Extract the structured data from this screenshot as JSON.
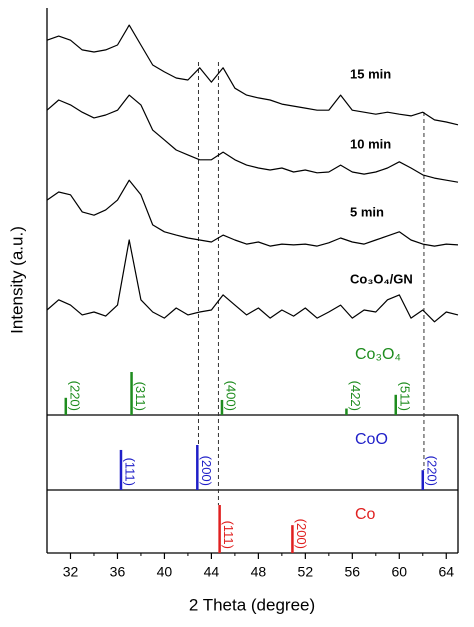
{
  "chart_data": {
    "type": "line",
    "xlabel": "2 Theta (degree)",
    "ylabel": "Intensity (a.u.)",
    "xlim": [
      30,
      65
    ],
    "xticks": [
      32,
      36,
      40,
      44,
      48,
      52,
      56,
      60,
      64
    ],
    "ylim": [
      0,
      100
    ],
    "x": [
      30,
      31,
      32,
      33,
      34,
      35,
      36,
      37,
      38,
      39,
      40,
      41,
      42,
      43,
      44,
      45,
      46,
      47,
      48,
      49,
      50,
      51,
      52,
      53,
      54,
      55,
      56,
      57,
      58,
      59,
      60,
      61,
      62,
      63,
      64,
      65
    ],
    "series": [
      {
        "name": "15 min",
        "color": "#000000",
        "values": [
          92.1,
          93.1,
          92.1,
          89.7,
          89.2,
          89.7,
          90.9,
          95.8,
          90.9,
          86.0,
          84.3,
          82.8,
          82.3,
          85.3,
          81.8,
          85.3,
          80.3,
          78.6,
          77.9,
          77.4,
          76.4,
          75.9,
          75.4,
          74.9,
          74.9,
          78.6,
          74.9,
          74.4,
          73.9,
          74.4,
          73.9,
          73.5,
          74.4,
          72.5,
          72.0,
          71.3
        ]
      },
      {
        "name": "10 min",
        "color": "#000000",
        "values": [
          74.9,
          77.4,
          76.2,
          74.4,
          73.0,
          73.7,
          74.9,
          78.6,
          76.2,
          70.0,
          67.6,
          65.1,
          63.9,
          62.7,
          62.7,
          64.6,
          62.7,
          61.4,
          60.7,
          60.2,
          60.7,
          59.7,
          60.2,
          59.5,
          59.7,
          61.4,
          59.7,
          59.2,
          59.7,
          60.7,
          62.2,
          60.7,
          59.0,
          58.2,
          57.7,
          57.2
        ]
      },
      {
        "name": "5 min",
        "color": "#000000",
        "values": [
          52.8,
          54.8,
          54.1,
          49.9,
          49.1,
          50.4,
          52.8,
          57.7,
          54.1,
          46.7,
          45.0,
          44.2,
          43.5,
          43.0,
          42.5,
          44.2,
          43.0,
          42.0,
          42.5,
          41.5,
          42.0,
          41.8,
          42.0,
          41.5,
          42.3,
          43.5,
          42.5,
          42.0,
          43.0,
          44.0,
          45.0,
          43.0,
          42.0,
          41.5,
          42.0,
          41.8
        ]
      },
      {
        "name": "Co₃O₄/GN",
        "color": "#000000",
        "values": [
          25.8,
          28.3,
          27.0,
          24.6,
          25.3,
          24.3,
          27.0,
          43.0,
          28.3,
          25.3,
          23.8,
          26.3,
          24.6,
          25.3,
          25.8,
          29.5,
          27.0,
          24.6,
          26.3,
          23.8,
          25.8,
          24.3,
          26.3,
          23.8,
          25.3,
          27.0,
          23.8,
          25.8,
          25.3,
          28.3,
          29.5,
          23.8,
          25.8,
          22.9,
          25.3,
          24.6
        ]
      }
    ],
    "reference_patterns": [
      {
        "name": "Co₃O₄",
        "color": "#1e8c1e",
        "positions": [
          31.6,
          37.2,
          44.9,
          55.5,
          59.7
        ],
        "intensities": [
          40,
          100,
          35,
          15,
          47
        ],
        "labels": [
          "(220)",
          "(311)",
          "(400)",
          "(422)",
          "(511)"
        ]
      },
      {
        "name": "CoO",
        "color": "#1f1fc8",
        "positions": [
          36.3,
          42.8,
          62.0
        ],
        "intensities": [
          89,
          100,
          44
        ],
        "labels": [
          "(111)",
          "(200)",
          "(220)"
        ]
      },
      {
        "name": "Co",
        "color": "#e02020",
        "positions": [
          44.7,
          50.9
        ],
        "intensities": [
          100,
          58
        ],
        "labels": [
          "(111)",
          "(200)"
        ]
      }
    ],
    "guide_lines": [
      42.9,
      44.6,
      62.1
    ]
  }
}
